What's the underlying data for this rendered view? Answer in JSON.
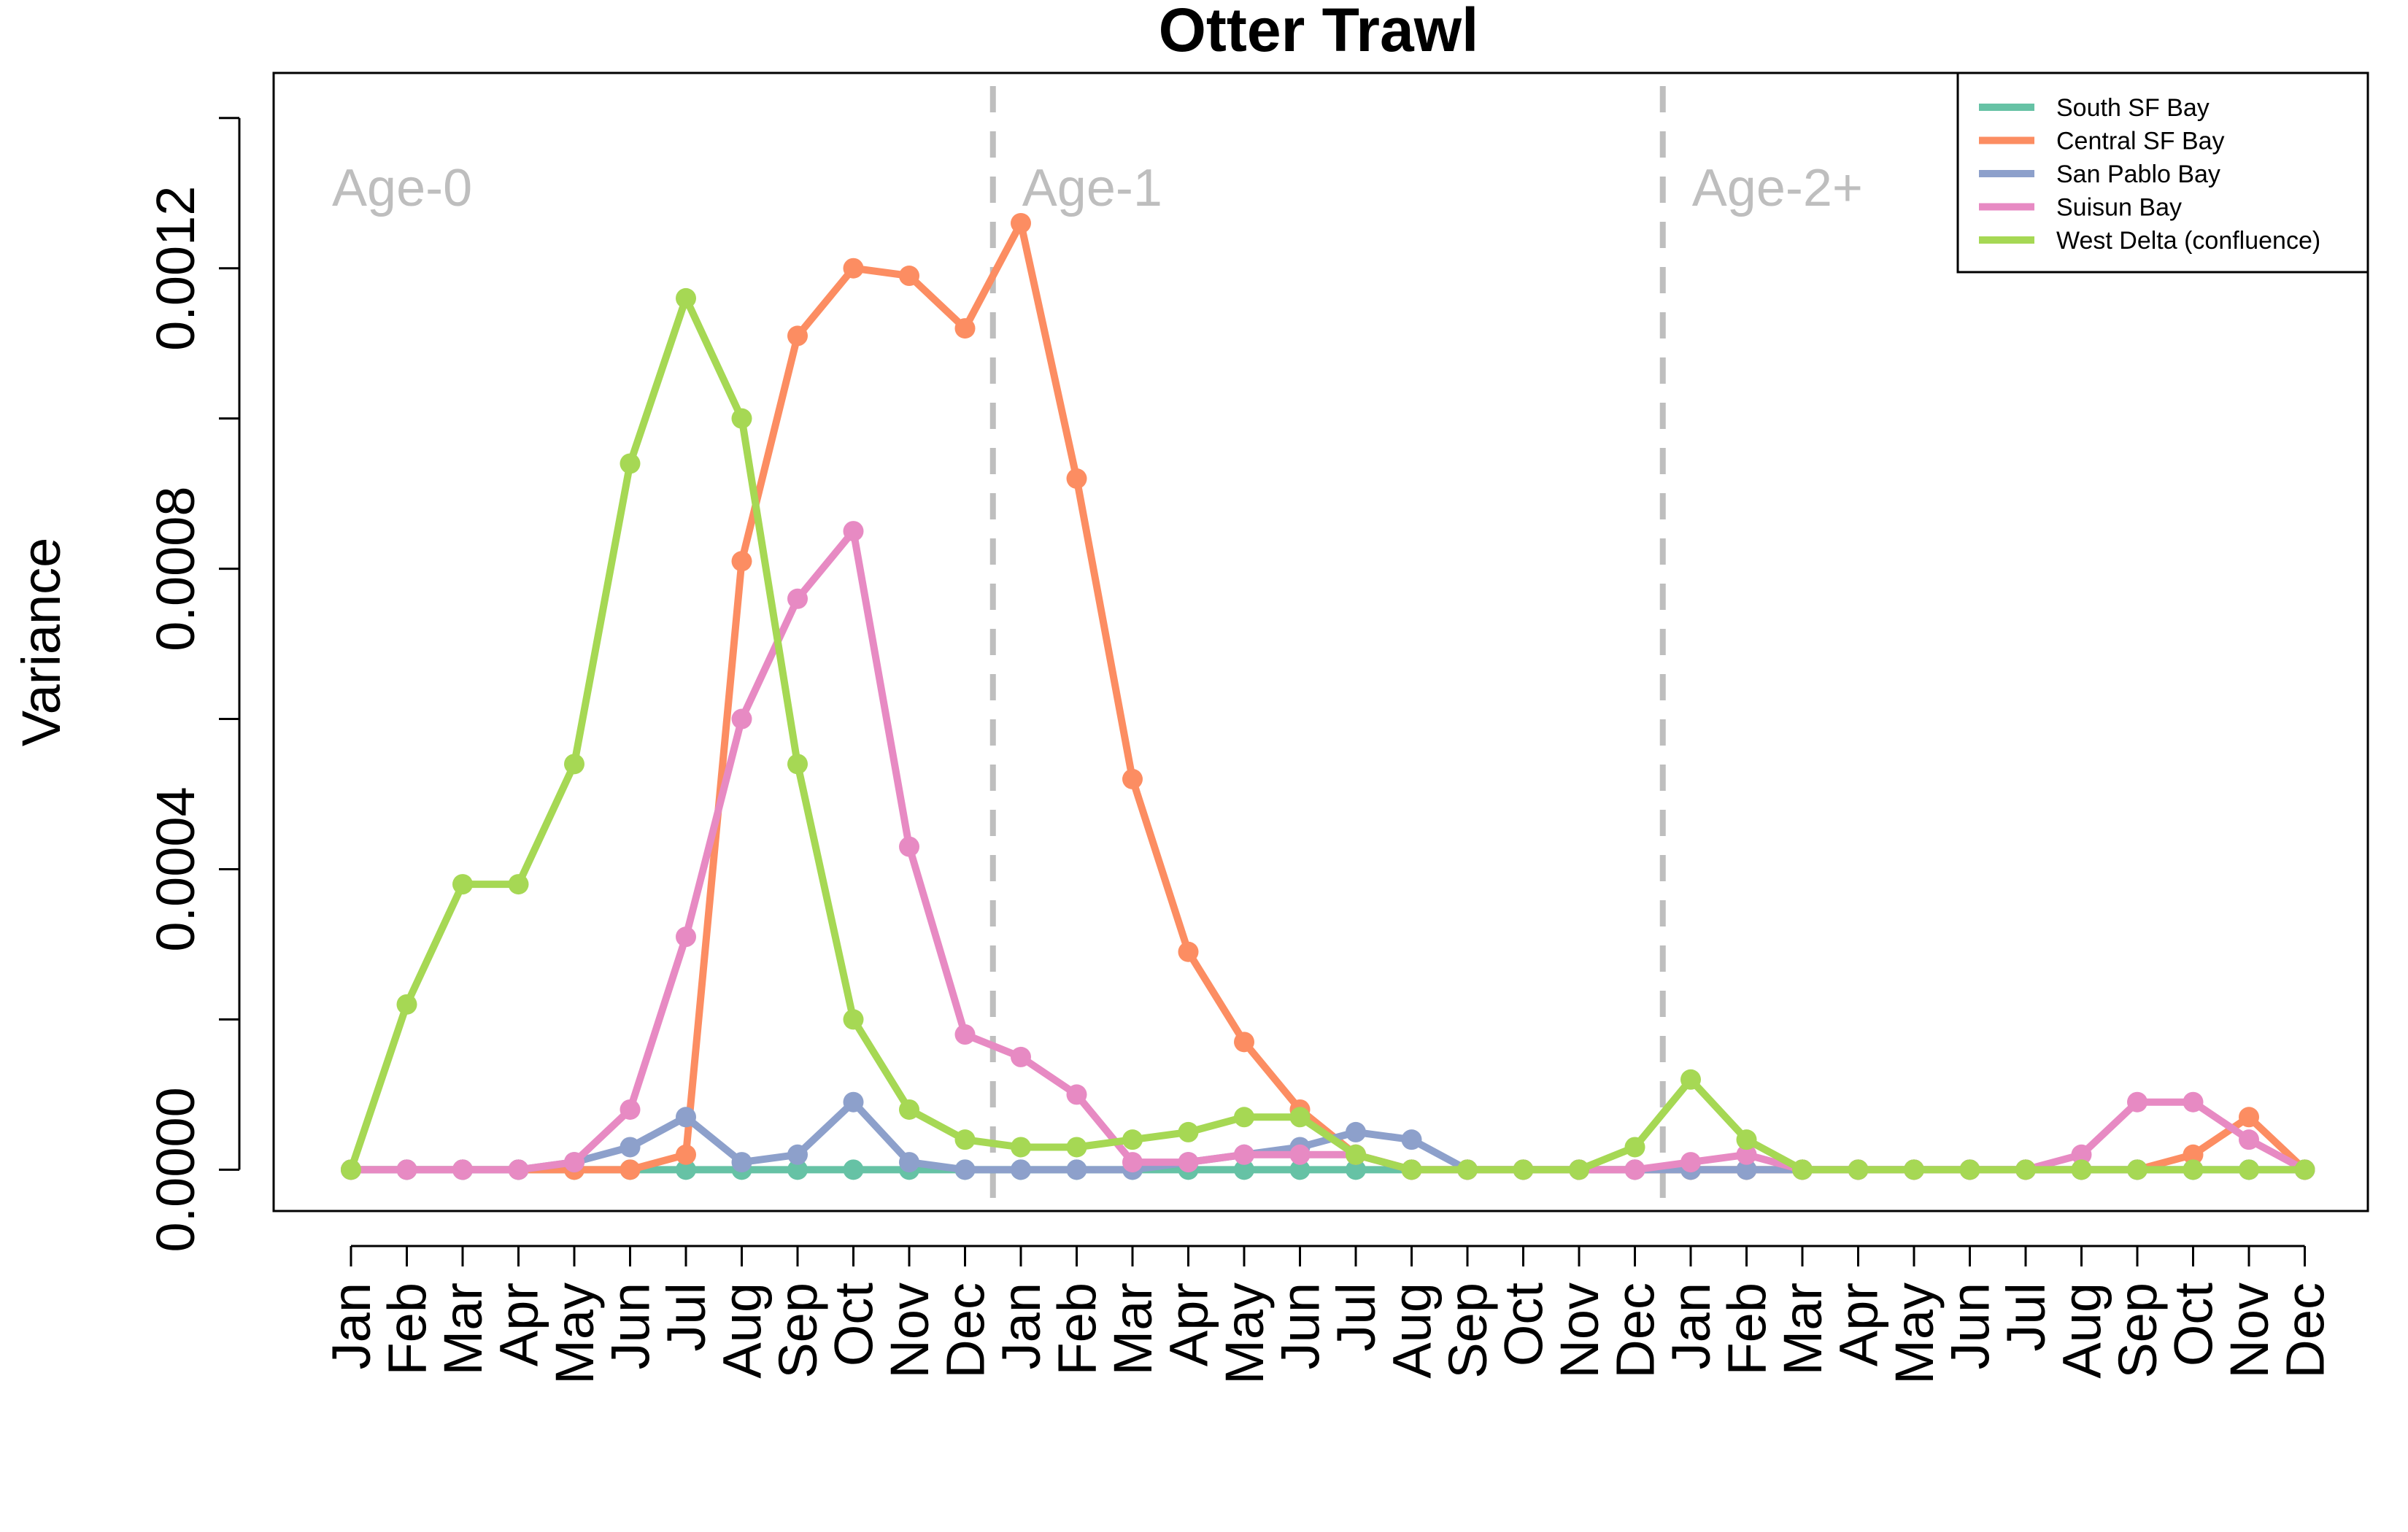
{
  "chart_data": {
    "type": "line",
    "title": "Otter Trawl",
    "ylabel": "Variance",
    "xlabel": "",
    "ylim": [
      -5.5e-05,
      0.00146
    ],
    "yticks": [
      0.0,
      0.0002,
      0.0004,
      0.0006,
      0.0008,
      0.001,
      0.0012,
      0.0014
    ],
    "ytick_labels": [
      "0.0000",
      "0.0004",
      "0.0008",
      "0.0012"
    ],
    "ytick_label_values": [
      0.0,
      0.0004,
      0.0008,
      0.0012
    ],
    "categories": [
      "Jan",
      "Feb",
      "Mar",
      "Apr",
      "May",
      "Jun",
      "Jul",
      "Aug",
      "Sep",
      "Oct",
      "Nov",
      "Dec",
      "Jan",
      "Feb",
      "Mar",
      "Apr",
      "May",
      "Jun",
      "Jul",
      "Aug",
      "Sep",
      "Oct",
      "Nov",
      "Dec",
      "Jan",
      "Feb",
      "Mar",
      "Apr",
      "May",
      "Jun",
      "Jul",
      "Aug",
      "Sep",
      "Oct",
      "Nov",
      "Dec"
    ],
    "age_groups": [
      {
        "label": "Age-0",
        "start_index": 0
      },
      {
        "label": "Age-1",
        "start_index": 12
      },
      {
        "label": "Age-2+",
        "start_index": 24
      }
    ],
    "legend_position": "top-right",
    "grid": false,
    "series": [
      {
        "name": "South SF Bay",
        "color": "#66c2a5",
        "values": [
          0,
          0,
          0,
          0,
          0,
          0,
          0,
          0,
          0,
          0,
          0,
          0,
          0,
          0,
          0,
          0,
          0,
          0,
          0,
          0,
          0,
          0,
          0,
          0,
          0,
          0,
          0,
          0,
          0,
          0,
          0,
          0,
          0,
          0,
          0,
          0
        ]
      },
      {
        "name": "Central SF Bay",
        "color": "#fc8d62",
        "values": [
          0,
          0,
          0,
          0,
          0,
          0,
          2e-05,
          0.00081,
          0.00111,
          0.0012,
          0.00119,
          0.00112,
          0.00126,
          0.00092,
          0.00052,
          0.00029,
          0.00017,
          8e-05,
          2e-05,
          0,
          0,
          0,
          0,
          0,
          0,
          0,
          0,
          0,
          0,
          0,
          0,
          0,
          0,
          2e-05,
          7e-05,
          0
        ]
      },
      {
        "name": "San Pablo Bay",
        "color": "#8da0cb",
        "values": [
          0,
          0,
          0,
          0,
          1e-05,
          3e-05,
          7e-05,
          1e-05,
          2e-05,
          9e-05,
          1e-05,
          0,
          0,
          0,
          0,
          1e-05,
          2e-05,
          3e-05,
          5e-05,
          4e-05,
          0,
          0,
          0,
          0,
          0,
          0,
          0,
          0,
          0,
          0,
          0,
          0,
          0,
          0,
          0,
          0
        ]
      },
      {
        "name": "Suisun Bay",
        "color": "#e78ac3",
        "values": [
          0,
          0,
          0,
          0,
          1e-05,
          8e-05,
          0.00031,
          0.0006,
          0.00076,
          0.00085,
          0.00043,
          0.00018,
          0.00015,
          0.0001,
          1e-05,
          1e-05,
          2e-05,
          2e-05,
          2e-05,
          0,
          0,
          0,
          0,
          0,
          1e-05,
          2e-05,
          0,
          0,
          0,
          0,
          0,
          2e-05,
          9e-05,
          9e-05,
          4e-05,
          0
        ]
      },
      {
        "name": "West Delta (confluence)",
        "color": "#a6d854",
        "values": [
          0,
          0.00022,
          0.00038,
          0.00038,
          0.00054,
          0.00094,
          0.00116,
          0.001,
          0.00054,
          0.0002,
          8e-05,
          4e-05,
          3e-05,
          3e-05,
          4e-05,
          5e-05,
          7e-05,
          7e-05,
          2e-05,
          0,
          0,
          0,
          0,
          3e-05,
          0.00012,
          4e-05,
          0,
          0,
          0,
          0,
          0,
          0,
          0,
          0,
          0,
          0
        ]
      }
    ]
  }
}
